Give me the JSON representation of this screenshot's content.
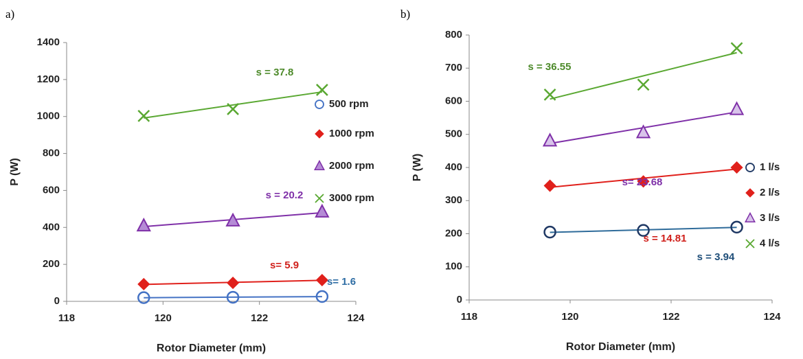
{
  "chart_data": [
    {
      "type": "scatter",
      "label": "a)",
      "xlabel": "Rotor Diameter (mm)",
      "ylabel": "P (W)",
      "xlim": [
        118,
        124
      ],
      "xticks": [
        118,
        120,
        122,
        124
      ],
      "ylim": [
        0,
        1400
      ],
      "yticks": [
        0,
        200,
        400,
        600,
        800,
        1000,
        1200,
        1400
      ],
      "x": [
        119.6,
        121.45,
        123.3
      ],
      "trendline": true,
      "series": [
        {
          "name": "500 rpm",
          "marker": "circle",
          "color": "#4472c4",
          "fill": "none",
          "line_color": "#4472c4",
          "values": [
            20,
            22,
            26
          ]
        },
        {
          "name": "1000 rpm",
          "marker": "diamond",
          "color": "#e0201b",
          "fill": "#e0201b",
          "line_color": "#e0201b",
          "values": [
            93,
            100,
            115
          ]
        },
        {
          "name": "2000 rpm",
          "marker": "triangle",
          "color": "#7f30a8",
          "fill": "#b58bd6",
          "line_color": "#7f30a8",
          "values": [
            408,
            435,
            483
          ]
        },
        {
          "name": "3000 rpm",
          "marker": "x",
          "color": "#5aa832",
          "fill": "none",
          "line_color": "#5aa832",
          "values": [
            1003,
            1040,
            1144
          ]
        }
      ],
      "annotations": [
        {
          "text": "s = 37.8",
          "color": "#4d8a2a"
        },
        {
          "text": "s = 20.2",
          "color": "#7f30a8"
        },
        {
          "text": "s= 5.9",
          "color": "#d0201b"
        },
        {
          "text": "s= 1.6",
          "color": "#2e6da4"
        }
      ]
    },
    {
      "type": "scatter",
      "label": "b)",
      "xlabel": "Rotor Diameter (mm)",
      "ylabel": "P (W)",
      "xlim": [
        118,
        124
      ],
      "xticks": [
        118,
        120,
        122,
        124
      ],
      "ylim": [
        0,
        800
      ],
      "yticks": [
        0,
        100,
        200,
        300,
        400,
        500,
        600,
        700,
        800
      ],
      "x": [
        119.6,
        121.45,
        123.3
      ],
      "trendline": true,
      "series": [
        {
          "name": "1 l/s",
          "marker": "circle",
          "color": "#1f3864",
          "fill": "none",
          "line_color": "#2e6b9a",
          "values": [
            205,
            210,
            220
          ]
        },
        {
          "name": "2 l/s",
          "marker": "diamond",
          "color": "#e0201b",
          "fill": "#e0201b",
          "line_color": "#e0201b",
          "values": [
            345,
            358,
            400
          ]
        },
        {
          "name": "3 l/s",
          "marker": "triangle",
          "color": "#7f30a8",
          "fill": "#d8c4ea",
          "line_color": "#7f30a8",
          "values": [
            480,
            505,
            575
          ]
        },
        {
          "name": "4 l/s",
          "marker": "x",
          "color": "#5aa832",
          "fill": "none",
          "line_color": "#5aa832",
          "values": [
            620,
            650,
            760
          ]
        }
      ],
      "annotations": [
        {
          "text": "s = 36.55",
          "color": "#4d8a2a"
        },
        {
          "text": "s= 23.68",
          "color": "#7f30a8"
        },
        {
          "text": "s = 14.81",
          "color": "#d0201b"
        },
        {
          "text": "s = 3.94",
          "color": "#1f4e79"
        }
      ]
    }
  ]
}
